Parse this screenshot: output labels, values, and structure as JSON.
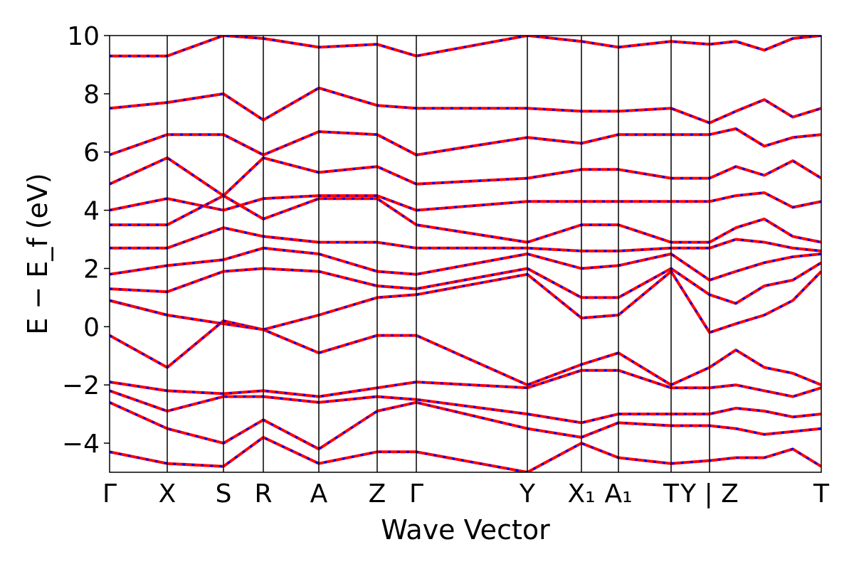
{
  "chart_data": {
    "type": "line",
    "title": "",
    "xlabel": "Wave Vector",
    "ylabel": "E − E_f (eV)",
    "ylim": [
      -5,
      10
    ],
    "yticks": [
      -4,
      -2,
      0,
      2,
      4,
      6,
      8,
      10
    ],
    "ytick_labels": [
      "−4",
      "−2",
      "0",
      "2",
      "4",
      "6",
      "8",
      "10"
    ],
    "grid": false,
    "legend": "none",
    "colors": {
      "primary_band": "#ff0000",
      "overlay_band_dash": "#0000ff",
      "frame": "#000000"
    },
    "kpath": {
      "x_range": [
        0,
        100
      ],
      "ticks": [
        {
          "x": 0.0,
          "label": "Γ"
        },
        {
          "x": 8.1,
          "label": "X"
        },
        {
          "x": 16.0,
          "label": "S"
        },
        {
          "x": 21.6,
          "label": "R"
        },
        {
          "x": 29.4,
          "label": "A"
        },
        {
          "x": 37.6,
          "label": "Z"
        },
        {
          "x": 43.1,
          "label": "Γ"
        },
        {
          "x": 58.7,
          "label": "Y"
        },
        {
          "x": 66.3,
          "label": "X₁"
        },
        {
          "x": 71.5,
          "label": "A₁"
        },
        {
          "x": 78.9,
          "label": "T"
        },
        {
          "x": 84.3,
          "label": "Y | Z"
        },
        {
          "x": 100.0,
          "label": "T"
        }
      ]
    },
    "series": [
      {
        "x": [
          0,
          8.1,
          16,
          21.6,
          29.4,
          37.6,
          43.1,
          58.7,
          66.3,
          71.5,
          78.9,
          84.3,
          88,
          92,
          96,
          100
        ],
        "values": [
          -4.3,
          -4.7,
          -4.8,
          -3.8,
          -4.7,
          -4.3,
          -4.3,
          -5.0,
          -4.0,
          -4.5,
          -4.7,
          -4.6,
          -4.5,
          -4.5,
          -4.2,
          -4.8
        ]
      },
      {
        "x": [
          0,
          8.1,
          16,
          21.6,
          29.4,
          37.6,
          43.1,
          58.7,
          66.3,
          71.5,
          78.9,
          84.3,
          88,
          92,
          96,
          100
        ],
        "values": [
          -2.6,
          -3.5,
          -4.0,
          -3.2,
          -4.2,
          -2.9,
          -2.6,
          -3.5,
          -3.8,
          -3.3,
          -3.4,
          -3.4,
          -3.5,
          -3.7,
          -3.6,
          -3.5
        ]
      },
      {
        "x": [
          0,
          8.1,
          16,
          21.6,
          29.4,
          37.6,
          43.1,
          58.7,
          66.3,
          71.5,
          78.9,
          84.3,
          88,
          92,
          96,
          100
        ],
        "values": [
          -2.2,
          -2.9,
          -2.4,
          -2.4,
          -2.6,
          -2.4,
          -2.5,
          -3.0,
          -3.3,
          -3.0,
          -3.0,
          -3.0,
          -2.8,
          -2.9,
          -3.1,
          -3.0
        ]
      },
      {
        "x": [
          0,
          8.1,
          16,
          21.6,
          29.4,
          37.6,
          43.1,
          58.7,
          66.3,
          71.5,
          78.9,
          84.3,
          88,
          92,
          96,
          100
        ],
        "values": [
          -1.9,
          -2.2,
          -2.3,
          -2.2,
          -2.4,
          -2.1,
          -1.9,
          -2.1,
          -1.5,
          -1.5,
          -2.1,
          -2.1,
          -2.0,
          -2.2,
          -2.4,
          -2.1
        ]
      },
      {
        "x": [
          0,
          8.1,
          16,
          21.6,
          29.4,
          37.6,
          43.1,
          58.7,
          66.3,
          71.5,
          78.9,
          84.3,
          88,
          92,
          96,
          100
        ],
        "values": [
          -0.3,
          -1.4,
          0.2,
          -0.1,
          -0.9,
          -0.3,
          -0.3,
          -2.0,
          -1.3,
          -0.9,
          -2.0,
          -1.4,
          -0.8,
          -1.4,
          -1.6,
          -2.0
        ]
      },
      {
        "x": [
          0,
          8.1,
          16,
          21.6,
          29.4,
          37.6,
          43.1,
          58.7,
          66.3,
          71.5,
          78.9,
          84.3,
          88,
          92,
          96,
          100
        ],
        "values": [
          0.9,
          0.4,
          0.1,
          -0.1,
          0.4,
          1.0,
          1.1,
          1.8,
          0.3,
          0.4,
          1.9,
          -0.2,
          0.1,
          0.4,
          0.9,
          1.9
        ]
      },
      {
        "x": [
          0,
          8.1,
          16,
          21.6,
          29.4,
          37.6,
          43.1,
          58.7,
          66.3,
          71.5,
          78.9,
          84.3,
          88,
          92,
          96,
          100
        ],
        "values": [
          1.3,
          1.2,
          1.9,
          2.0,
          1.9,
          1.4,
          1.3,
          2.0,
          1.0,
          1.0,
          2.0,
          1.1,
          0.8,
          1.4,
          1.6,
          2.2
        ]
      },
      {
        "x": [
          0,
          8.1,
          16,
          21.6,
          29.4,
          37.6,
          43.1,
          58.7,
          66.3,
          71.5,
          78.9,
          84.3,
          88,
          92,
          96,
          100
        ],
        "values": [
          1.8,
          2.1,
          2.3,
          2.7,
          2.5,
          1.9,
          1.8,
          2.5,
          2.0,
          2.1,
          2.5,
          1.6,
          1.9,
          2.2,
          2.4,
          2.5
        ]
      },
      {
        "x": [
          0,
          8.1,
          16,
          21.6,
          29.4,
          37.6,
          43.1,
          58.7,
          66.3,
          71.5,
          78.9,
          84.3,
          88,
          92,
          96,
          100
        ],
        "values": [
          2.7,
          2.7,
          3.4,
          3.1,
          2.9,
          2.9,
          2.7,
          2.7,
          2.6,
          2.6,
          2.7,
          2.7,
          3.0,
          2.9,
          2.7,
          2.6
        ]
      },
      {
        "x": [
          0,
          8.1,
          16,
          21.6,
          29.4,
          37.6,
          43.1,
          58.7,
          66.3,
          71.5,
          78.9,
          84.3,
          88,
          92,
          96,
          100
        ],
        "values": [
          3.5,
          3.5,
          4.5,
          3.7,
          4.4,
          4.4,
          3.5,
          2.9,
          3.5,
          3.5,
          2.9,
          2.9,
          3.4,
          3.7,
          3.1,
          2.9
        ]
      },
      {
        "x": [
          0,
          8.1,
          16,
          21.6,
          29.4,
          37.6,
          43.1,
          58.7,
          66.3,
          71.5,
          78.9,
          84.3,
          88,
          92,
          96,
          100
        ],
        "values": [
          4.0,
          4.4,
          4.0,
          4.4,
          4.5,
          4.5,
          4.0,
          4.3,
          4.3,
          4.3,
          4.3,
          4.3,
          4.5,
          4.6,
          4.1,
          4.3
        ]
      },
      {
        "x": [
          0,
          8.1,
          16,
          21.6,
          29.4,
          37.6,
          43.1,
          58.7,
          66.3,
          71.5,
          78.9,
          84.3,
          88,
          92,
          96,
          100
        ],
        "values": [
          4.9,
          5.8,
          4.5,
          5.8,
          5.3,
          5.5,
          4.9,
          5.1,
          5.4,
          5.4,
          5.1,
          5.1,
          5.5,
          5.2,
          5.7,
          5.1
        ]
      },
      {
        "x": [
          0,
          8.1,
          16,
          21.6,
          29.4,
          37.6,
          43.1,
          58.7,
          66.3,
          71.5,
          78.9,
          84.3,
          88,
          92,
          96,
          100
        ],
        "values": [
          5.9,
          6.6,
          6.6,
          5.9,
          6.7,
          6.6,
          5.9,
          6.5,
          6.3,
          6.6,
          6.6,
          6.6,
          6.8,
          6.2,
          6.5,
          6.6
        ]
      },
      {
        "x": [
          0,
          8.1,
          16,
          21.6,
          29.4,
          37.6,
          43.1,
          58.7,
          66.3,
          71.5,
          78.9,
          84.3,
          88,
          92,
          96,
          100
        ],
        "values": [
          7.5,
          7.7,
          8.0,
          7.1,
          8.2,
          7.6,
          7.5,
          7.5,
          7.4,
          7.4,
          7.5,
          7.0,
          7.4,
          7.8,
          7.2,
          7.5
        ]
      },
      {
        "x": [
          0,
          8.1,
          16,
          21.6,
          29.4,
          37.6,
          43.1,
          58.7,
          66.3,
          71.5,
          78.9,
          84.3,
          88,
          92,
          96,
          100
        ],
        "values": [
          9.3,
          9.3,
          10.0,
          9.9,
          9.6,
          9.7,
          9.3,
          10.0,
          9.8,
          9.6,
          9.8,
          9.7,
          9.8,
          9.5,
          9.9,
          10.0
        ]
      }
    ]
  }
}
